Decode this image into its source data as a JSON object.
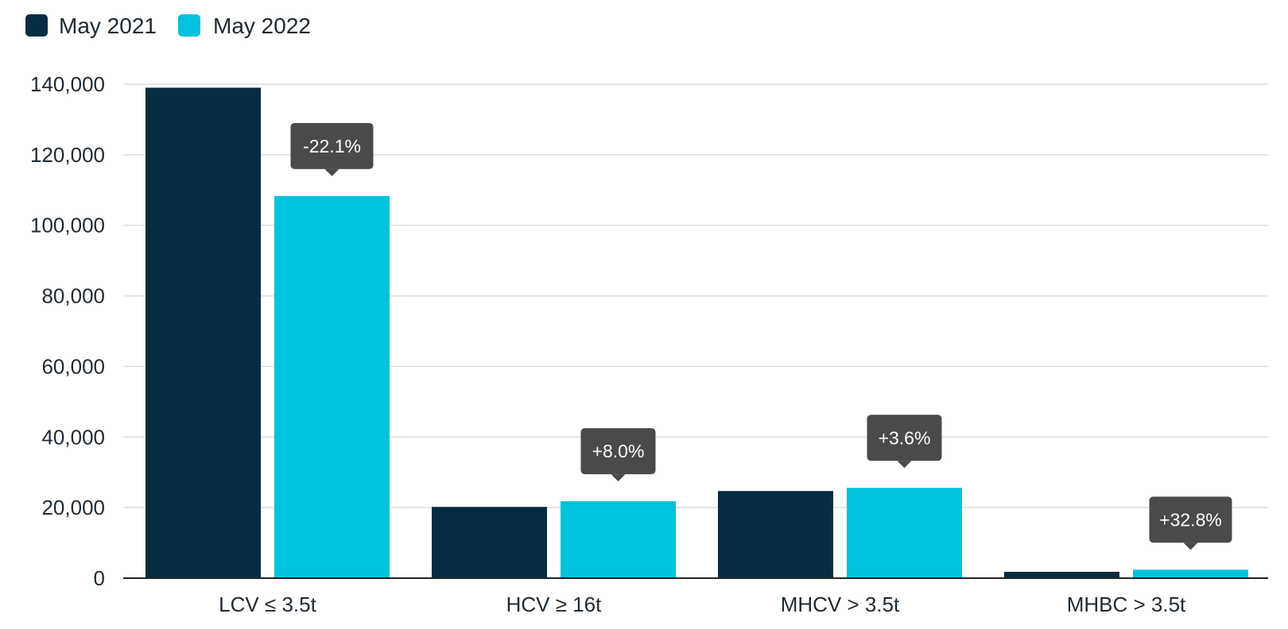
{
  "chart_data": {
    "type": "bar",
    "categories": [
      "LCV ≤ 3.5t",
      "HCV ≥ 16t",
      "MHCV > 3.5t",
      "MHBC > 3.5t"
    ],
    "series": [
      {
        "name": "May 2021",
        "color": "#052c41",
        "values": [
          139000,
          20200,
          24700,
          1800
        ]
      },
      {
        "name": "May 2022",
        "color": "#00c2dc",
        "values": [
          108300,
          21800,
          25600,
          2400
        ]
      }
    ],
    "annotations": [
      "-22.1%",
      "+8.0%",
      "+3.6%",
      "+32.8%"
    ],
    "ylim": [
      0,
      140000
    ],
    "yticks": [
      0,
      20000,
      40000,
      60000,
      80000,
      100000,
      120000,
      140000
    ],
    "ytick_labels": [
      "0",
      "20,000",
      "40,000",
      "60,000",
      "80,000",
      "100,000",
      "120,000",
      "140,000"
    ],
    "grid": true,
    "legend_position": "top-left"
  },
  "colors": {
    "grid": "#dddddd",
    "axis": "#222222",
    "annotation_bg": "#4a4a4a"
  }
}
